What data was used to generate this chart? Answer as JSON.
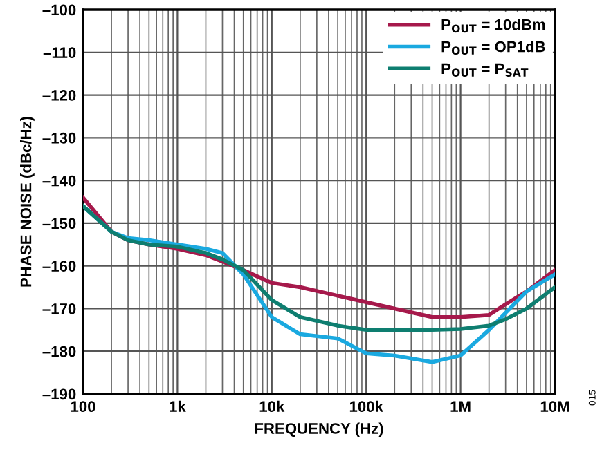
{
  "chart_data": {
    "type": "line",
    "xlabel": "FREQUENCY (Hz)",
    "ylabel": "PHASE NOISE (dBc/Hz)",
    "log": "x",
    "grid": true,
    "legend": "top right",
    "line_style": "solid",
    "marker": "none",
    "x": [
      100,
      200,
      300,
      500,
      1000,
      2000,
      3000,
      5000,
      10000,
      20000,
      50000,
      100000,
      200000,
      500000,
      1000000,
      2000000,
      3000000,
      5000000,
      10000000
    ],
    "series": [
      {
        "name": "P$_{OUT}$ = 10dBm",
        "color": "#a6194b",
        "values": [
          -144,
          -152,
          -154,
          -155,
          -156,
          -157.5,
          -159,
          -161,
          -164,
          -165,
          -167,
          -168.5,
          -170,
          -172,
          -172,
          -171.5,
          -169,
          -166,
          -161
        ]
      },
      {
        "name": "P$_{OUT}$ = OP1dB",
        "color": "#1aa9e0",
        "values": [
          -146,
          -152,
          -153.5,
          -154,
          -155,
          -156,
          -157,
          -162,
          -172,
          -176,
          -177,
          -180.5,
          -181,
          -182.5,
          -181,
          -175,
          -171,
          -166,
          -162
        ]
      },
      {
        "name": "P$_{OUT}$ = P$_{SAT}$",
        "color": "#0e7e70",
        "values": [
          -146,
          -152,
          -154,
          -155,
          -155.5,
          -157,
          -158.5,
          -161,
          -168,
          -172,
          -174,
          -175,
          -175,
          -175,
          -174.8,
          -174,
          -172.5,
          -170,
          -165
        ]
      }
    ],
    "xlim": [
      100,
      10000000
    ],
    "ylim": [
      -190,
      -100
    ],
    "xticks": [
      {
        "value": 100,
        "label": "100"
      },
      {
        "value": 1000,
        "label": "1k"
      },
      {
        "value": 10000,
        "label": "10k"
      },
      {
        "value": 100000,
        "label": "100k"
      },
      {
        "value": 1000000,
        "label": "1M"
      },
      {
        "value": 10000000,
        "label": "10M"
      }
    ],
    "yticks": [
      {
        "value": -190,
        "label": "–190"
      },
      {
        "value": -180,
        "label": "–180"
      },
      {
        "value": -170,
        "label": "–170"
      },
      {
        "value": -160,
        "label": "–160"
      },
      {
        "value": -150,
        "label": "–150"
      },
      {
        "value": -140,
        "label": "–140"
      },
      {
        "value": -130,
        "label": "–130"
      },
      {
        "value": -120,
        "label": "–120"
      },
      {
        "value": -110,
        "label": "–110"
      },
      {
        "value": -100,
        "label": "–100"
      }
    ],
    "annotations": [
      "015"
    ]
  }
}
